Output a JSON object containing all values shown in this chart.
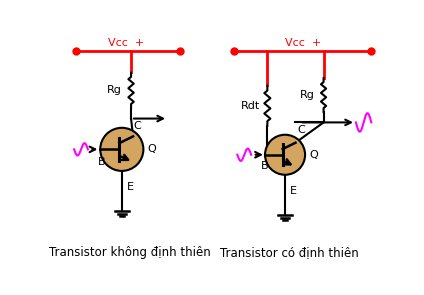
{
  "title_left": "Transistor không định thiên",
  "title_right": "Transistor có định thiên",
  "vcc_label": "Vcc  +",
  "rg_label": "Rg",
  "rdt_label": "Rdt",
  "b_label": "B",
  "c_label": "C",
  "e_label": "E",
  "q_label": "Q",
  "red": "#ff0000",
  "magenta": "#ff00ff",
  "black": "#000000",
  "transistor_fill": "#d4a560",
  "transistor_edge": "#000000",
  "bg": "#ffffff",
  "title_fontsize": 8.5,
  "label_fontsize": 8
}
